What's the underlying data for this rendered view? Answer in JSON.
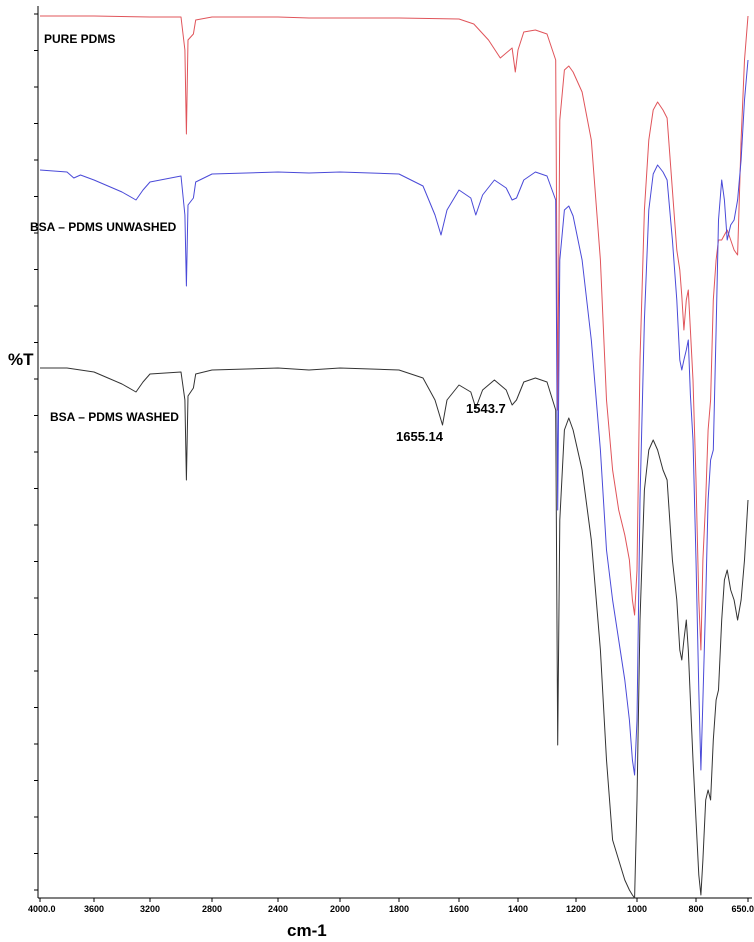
{
  "chart_data": {
    "type": "line",
    "xlabel": "cm-1",
    "ylabel": "%T",
    "x_reversed": true,
    "xlim": [
      4000,
      650
    ],
    "x_ticks": [
      "4000.0",
      "3600",
      "3200",
      "2800",
      "2400",
      "2000",
      "1800",
      "1600",
      "1400",
      "1200",
      "1000",
      "800",
      "650.0"
    ],
    "grid": false,
    "series": [
      {
        "name": "PURE PDMS",
        "color": "#e0545a",
        "points": [
          [
            4000,
            16
          ],
          [
            3600,
            16
          ],
          [
            3200,
            17
          ],
          [
            3000,
            17
          ],
          [
            2975,
            50
          ],
          [
            2965,
            134
          ],
          [
            2955,
            40
          ],
          [
            2920,
            34
          ],
          [
            2905,
            20
          ],
          [
            2800,
            17
          ],
          [
            2400,
            17
          ],
          [
            2200,
            18
          ],
          [
            2000,
            18
          ],
          [
            1800,
            18
          ],
          [
            1600,
            19
          ],
          [
            1550,
            24
          ],
          [
            1500,
            40
          ],
          [
            1460,
            58
          ],
          [
            1420,
            48
          ],
          [
            1409,
            72
          ],
          [
            1400,
            50
          ],
          [
            1380,
            32
          ],
          [
            1340,
            30
          ],
          [
            1300,
            34
          ],
          [
            1270,
            60
          ],
          [
            1263,
            410
          ],
          [
            1256,
            120
          ],
          [
            1240,
            70
          ],
          [
            1225,
            66
          ],
          [
            1210,
            72
          ],
          [
            1180,
            92
          ],
          [
            1150,
            140
          ],
          [
            1120,
            260
          ],
          [
            1100,
            400
          ],
          [
            1080,
            470
          ],
          [
            1060,
            510
          ],
          [
            1040,
            535
          ],
          [
            1025,
            560
          ],
          [
            1015,
            600
          ],
          [
            1008,
            615
          ],
          [
            1000,
            570
          ],
          [
            990,
            360
          ],
          [
            975,
            210
          ],
          [
            960,
            140
          ],
          [
            945,
            110
          ],
          [
            930,
            102
          ],
          [
            912,
            110
          ],
          [
            898,
            118
          ],
          [
            880,
            190
          ],
          [
            865,
            250
          ],
          [
            855,
            270
          ],
          [
            848,
            296
          ],
          [
            841,
            330
          ],
          [
            833,
            300
          ],
          [
            826,
            290
          ],
          [
            819,
            330
          ],
          [
            810,
            380
          ],
          [
            800,
            480
          ],
          [
            792,
            600
          ],
          [
            786,
            650
          ],
          [
            780,
            560
          ],
          [
            772,
            500
          ],
          [
            765,
            430
          ],
          [
            758,
            400
          ],
          [
            750,
            300
          ],
          [
            742,
            260
          ],
          [
            735,
            240
          ],
          [
            726,
            240
          ],
          [
            718,
            235
          ],
          [
            710,
            230
          ],
          [
            700,
            240
          ],
          [
            690,
            250
          ],
          [
            680,
            255
          ],
          [
            670,
            140
          ],
          [
            660,
            60
          ],
          [
            650,
            16
          ]
        ]
      },
      {
        "name": "BSA – PDMS UNWASHED",
        "color": "#4a4ad8",
        "points": [
          [
            4000,
            170
          ],
          [
            3800,
            172
          ],
          [
            3750,
            178
          ],
          [
            3700,
            175
          ],
          [
            3600,
            180
          ],
          [
            3500,
            186
          ],
          [
            3400,
            192
          ],
          [
            3300,
            200
          ],
          [
            3250,
            190
          ],
          [
            3200,
            182
          ],
          [
            3000,
            176
          ],
          [
            2975,
            215
          ],
          [
            2965,
            286
          ],
          [
            2955,
            205
          ],
          [
            2920,
            198
          ],
          [
            2905,
            182
          ],
          [
            2800,
            174
          ],
          [
            2400,
            172
          ],
          [
            2200,
            173
          ],
          [
            2000,
            172
          ],
          [
            1800,
            174
          ],
          [
            1720,
            186
          ],
          [
            1680,
            215
          ],
          [
            1660,
            235
          ],
          [
            1640,
            210
          ],
          [
            1600,
            190
          ],
          [
            1560,
            198
          ],
          [
            1543,
            215
          ],
          [
            1520,
            195
          ],
          [
            1480,
            180
          ],
          [
            1440,
            188
          ],
          [
            1420,
            200
          ],
          [
            1405,
            198
          ],
          [
            1380,
            180
          ],
          [
            1340,
            172
          ],
          [
            1300,
            176
          ],
          [
            1270,
            200
          ],
          [
            1263,
            510
          ],
          [
            1256,
            260
          ],
          [
            1240,
            210
          ],
          [
            1225,
            206
          ],
          [
            1210,
            216
          ],
          [
            1180,
            260
          ],
          [
            1150,
            340
          ],
          [
            1120,
            450
          ],
          [
            1100,
            550
          ],
          [
            1080,
            600
          ],
          [
            1060,
            640
          ],
          [
            1040,
            680
          ],
          [
            1025,
            720
          ],
          [
            1015,
            760
          ],
          [
            1008,
            775
          ],
          [
            1000,
            720
          ],
          [
            990,
            500
          ],
          [
            975,
            320
          ],
          [
            960,
            210
          ],
          [
            945,
            174
          ],
          [
            930,
            165
          ],
          [
            912,
            172
          ],
          [
            898,
            180
          ],
          [
            880,
            240
          ],
          [
            865,
            300
          ],
          [
            855,
            360
          ],
          [
            848,
            370
          ],
          [
            841,
            360
          ],
          [
            833,
            350
          ],
          [
            826,
            340
          ],
          [
            819,
            395
          ],
          [
            810,
            440
          ],
          [
            800,
            560
          ],
          [
            792,
            690
          ],
          [
            786,
            770
          ],
          [
            780,
            700
          ],
          [
            772,
            600
          ],
          [
            765,
            500
          ],
          [
            758,
            460
          ],
          [
            750,
            450
          ],
          [
            742,
            330
          ],
          [
            735,
            220
          ],
          [
            726,
            180
          ],
          [
            718,
            200
          ],
          [
            710,
            240
          ],
          [
            700,
            225
          ],
          [
            690,
            220
          ],
          [
            680,
            200
          ],
          [
            670,
            160
          ],
          [
            660,
            100
          ],
          [
            650,
            60
          ]
        ]
      },
      {
        "name": "BSA – PDMS WASHED",
        "color": "#333333",
        "points": [
          [
            4000,
            368
          ],
          [
            3800,
            368
          ],
          [
            3700,
            370
          ],
          [
            3600,
            372
          ],
          [
            3500,
            378
          ],
          [
            3400,
            384
          ],
          [
            3300,
            392
          ],
          [
            3250,
            382
          ],
          [
            3200,
            374
          ],
          [
            3000,
            372
          ],
          [
            2975,
            400
          ],
          [
            2965,
            480
          ],
          [
            2955,
            396
          ],
          [
            2920,
            388
          ],
          [
            2905,
            374
          ],
          [
            2800,
            370
          ],
          [
            2400,
            368
          ],
          [
            2200,
            370
          ],
          [
            2000,
            368
          ],
          [
            1800,
            370
          ],
          [
            1720,
            378
          ],
          [
            1680,
            400
          ],
          [
            1660,
            420
          ],
          [
            1655,
            425
          ],
          [
            1640,
            400
          ],
          [
            1600,
            385
          ],
          [
            1560,
            392
          ],
          [
            1543,
            408
          ],
          [
            1520,
            390
          ],
          [
            1480,
            380
          ],
          [
            1440,
            390
          ],
          [
            1420,
            405
          ],
          [
            1405,
            400
          ],
          [
            1380,
            382
          ],
          [
            1340,
            378
          ],
          [
            1300,
            382
          ],
          [
            1270,
            410
          ],
          [
            1263,
            745
          ],
          [
            1256,
            520
          ],
          [
            1240,
            430
          ],
          [
            1225,
            418
          ],
          [
            1210,
            430
          ],
          [
            1180,
            470
          ],
          [
            1150,
            540
          ],
          [
            1120,
            650
          ],
          [
            1100,
            760
          ],
          [
            1080,
            840
          ],
          [
            1060,
            860
          ],
          [
            1040,
            880
          ],
          [
            1025,
            890
          ],
          [
            1015,
            895
          ],
          [
            1008,
            898
          ],
          [
            1000,
            800
          ],
          [
            990,
            620
          ],
          [
            975,
            490
          ],
          [
            960,
            450
          ],
          [
            945,
            440
          ],
          [
            930,
            450
          ],
          [
            912,
            470
          ],
          [
            898,
            480
          ],
          [
            880,
            560
          ],
          [
            865,
            600
          ],
          [
            855,
            650
          ],
          [
            848,
            660
          ],
          [
            841,
            640
          ],
          [
            833,
            620
          ],
          [
            826,
            650
          ],
          [
            819,
            700
          ],
          [
            810,
            760
          ],
          [
            800,
            820
          ],
          [
            792,
            875
          ],
          [
            786,
            895
          ],
          [
            780,
            860
          ],
          [
            772,
            800
          ],
          [
            765,
            790
          ],
          [
            758,
            800
          ],
          [
            750,
            740
          ],
          [
            742,
            700
          ],
          [
            735,
            690
          ],
          [
            726,
            620
          ],
          [
            718,
            580
          ],
          [
            710,
            570
          ],
          [
            700,
            590
          ],
          [
            690,
            600
          ],
          [
            680,
            620
          ],
          [
            670,
            600
          ],
          [
            660,
            560
          ],
          [
            650,
            500
          ]
        ]
      }
    ],
    "annotations": [
      {
        "text": "1655.14",
        "x": 1655.14
      },
      {
        "text": "1543.7",
        "x": 1543.7
      }
    ]
  }
}
